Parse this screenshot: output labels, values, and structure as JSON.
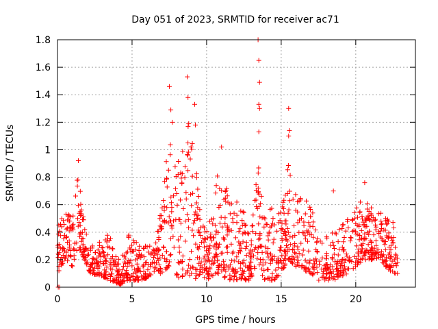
{
  "chart_data": {
    "type": "scatter",
    "title": "Day 051 of 2023, SRMTID for receiver ac71",
    "xlabel": "GPS time / hours",
    "ylabel": "SRMTID / TECUs",
    "xlim": [
      0,
      24
    ],
    "ylim": [
      0,
      1.8
    ],
    "x_ticks": [
      0,
      5,
      10,
      15,
      20
    ],
    "x_tick_labels": [
      "0",
      "5",
      "10",
      "15",
      "20"
    ],
    "y_ticks": [
      0,
      0.2,
      0.4,
      0.6,
      0.8,
      1.0,
      1.2,
      1.4,
      1.6,
      1.8
    ],
    "y_tick_labels": [
      "0",
      "0.2",
      "0.4",
      "0.6",
      "0.8",
      "1",
      "1.2",
      "1.4",
      "1.6",
      "1.8"
    ],
    "grid": true,
    "marker": "+",
    "series_color": "#ff0000",
    "data_span_hours": [
      0,
      22.8
    ],
    "envelope": [
      {
        "t": 0.0,
        "lo": 0.1,
        "hi": 0.45
      },
      {
        "t": 0.5,
        "lo": 0.2,
        "hi": 0.6
      },
      {
        "t": 1.0,
        "lo": 0.15,
        "hi": 0.55
      },
      {
        "t": 1.4,
        "lo": 0.3,
        "hi": 0.9
      },
      {
        "t": 1.8,
        "lo": 0.2,
        "hi": 0.5
      },
      {
        "t": 2.2,
        "lo": 0.1,
        "hi": 0.3
      },
      {
        "t": 3.0,
        "lo": 0.08,
        "hi": 0.35
      },
      {
        "t": 3.5,
        "lo": 0.05,
        "hi": 0.4
      },
      {
        "t": 4.2,
        "lo": 0.02,
        "hi": 0.18
      },
      {
        "t": 4.8,
        "lo": 0.05,
        "hi": 0.4
      },
      {
        "t": 5.5,
        "lo": 0.05,
        "hi": 0.3
      },
      {
        "t": 6.5,
        "lo": 0.08,
        "hi": 0.3
      },
      {
        "t": 7.0,
        "lo": 0.1,
        "hi": 0.6
      },
      {
        "t": 7.5,
        "lo": 0.15,
        "hi": 1.2
      },
      {
        "t": 8.0,
        "lo": 0.05,
        "hi": 0.9
      },
      {
        "t": 8.7,
        "lo": 0.1,
        "hi": 1.2
      },
      {
        "t": 9.2,
        "lo": 0.05,
        "hi": 1.1
      },
      {
        "t": 9.6,
        "lo": 0.1,
        "hi": 0.6
      },
      {
        "t": 10.0,
        "lo": 0.05,
        "hi": 0.4
      },
      {
        "t": 10.7,
        "lo": 0.1,
        "hi": 0.85
      },
      {
        "t": 11.5,
        "lo": 0.05,
        "hi": 0.7
      },
      {
        "t": 12.5,
        "lo": 0.05,
        "hi": 0.55
      },
      {
        "t": 13.0,
        "lo": 0.05,
        "hi": 0.4
      },
      {
        "t": 13.4,
        "lo": 0.2,
        "hi": 1.0
      },
      {
        "t": 13.8,
        "lo": 0.05,
        "hi": 0.6
      },
      {
        "t": 14.5,
        "lo": 0.05,
        "hi": 0.6
      },
      {
        "t": 15.0,
        "lo": 0.1,
        "hi": 0.6
      },
      {
        "t": 15.5,
        "lo": 0.2,
        "hi": 0.9
      },
      {
        "t": 16.0,
        "lo": 0.15,
        "hi": 0.7
      },
      {
        "t": 17.0,
        "lo": 0.1,
        "hi": 0.6
      },
      {
        "t": 17.5,
        "lo": 0.05,
        "hi": 0.35
      },
      {
        "t": 18.5,
        "lo": 0.05,
        "hi": 0.4
      },
      {
        "t": 19.5,
        "lo": 0.1,
        "hi": 0.5
      },
      {
        "t": 20.5,
        "lo": 0.2,
        "hi": 0.65
      },
      {
        "t": 21.5,
        "lo": 0.2,
        "hi": 0.55
      },
      {
        "t": 22.5,
        "lo": 0.1,
        "hi": 0.5
      },
      {
        "t": 22.8,
        "lo": 0.1,
        "hi": 0.2
      }
    ],
    "spikes": [
      {
        "t": 0.05,
        "v": 0.0
      },
      {
        "t": 0.15,
        "v": 0.0
      },
      {
        "t": 1.4,
        "v": 0.92
      },
      {
        "t": 7.5,
        "v": 1.46
      },
      {
        "t": 7.6,
        "v": 1.29
      },
      {
        "t": 7.7,
        "v": 1.2
      },
      {
        "t": 8.7,
        "v": 1.53
      },
      {
        "t": 8.75,
        "v": 1.38
      },
      {
        "t": 8.8,
        "v": 1.19
      },
      {
        "t": 9.2,
        "v": 1.33
      },
      {
        "t": 9.25,
        "v": 1.18
      },
      {
        "t": 11.0,
        "v": 1.02
      },
      {
        "t": 13.45,
        "v": 1.8
      },
      {
        "t": 13.5,
        "v": 1.65
      },
      {
        "t": 13.55,
        "v": 1.49
      },
      {
        "t": 13.5,
        "v": 1.33
      },
      {
        "t": 13.55,
        "v": 1.3
      },
      {
        "t": 13.5,
        "v": 1.13
      },
      {
        "t": 15.5,
        "v": 1.3
      },
      {
        "t": 15.55,
        "v": 1.14
      },
      {
        "t": 15.5,
        "v": 1.1
      },
      {
        "t": 18.5,
        "v": 0.7
      },
      {
        "t": 20.6,
        "v": 0.76
      }
    ]
  }
}
